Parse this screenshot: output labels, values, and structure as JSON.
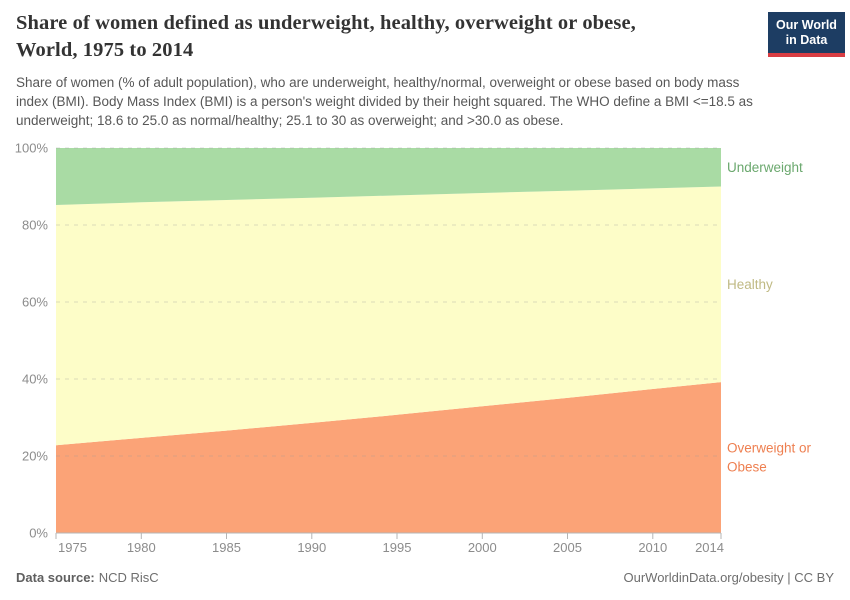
{
  "header": {
    "title_lines": [
      "Share of women defined as underweight, healthy, overweight or obese,",
      "World, 1975 to 2014"
    ],
    "subtitle": "Share of women (% of adult population), who are underweight, healthy/normal, overweight or obese based on body mass index (BMI). Body Mass Index (BMI) is a person's weight divided by their height squared. The WHO define a BMI <=18.5 as underweight; 18.6 to 25.0 as normal/healthy; 25.1 to 30 as overweight; and >30.0 as obese.",
    "logo": {
      "line1": "Our World",
      "line2": "in Data",
      "bg": "#1d3d63",
      "accent": "#d93d43"
    }
  },
  "chart_data": {
    "type": "area",
    "stacked": true,
    "title": "Share of women defined as underweight, healthy, overweight or obese, World, 1975 to 2014",
    "xlabel": "",
    "ylabel": "",
    "x": [
      1975,
      1980,
      1985,
      1990,
      1995,
      2000,
      2005,
      2010,
      2014
    ],
    "x_tick_labels": [
      "1975",
      "1980",
      "1985",
      "1990",
      "1995",
      "2000",
      "2005",
      "2010",
      "2014"
    ],
    "xlim": [
      1975,
      2014
    ],
    "ylim": [
      0,
      100
    ],
    "y_ticks": [
      0,
      20,
      40,
      60,
      80,
      100
    ],
    "y_tick_labels": [
      "0%",
      "20%",
      "40%",
      "60%",
      "80%",
      "100%"
    ],
    "grid": "dashed-horizontal",
    "legend_position": "inline-right-labels",
    "series": [
      {
        "name": "Overweight or Obese",
        "label_lines": [
          "Overweight or",
          "Obese"
        ],
        "color": "#fba377",
        "label_color": "#ee7f50",
        "values": [
          22.8,
          24.7,
          26.6,
          28.6,
          30.7,
          32.9,
          35.1,
          37.4,
          39.2
        ]
      },
      {
        "name": "Healthy",
        "label_lines": [
          "Healthy"
        ],
        "color": "#fdfdc8",
        "label_color": "#c0ba84",
        "values": [
          62.4,
          61.2,
          59.9,
          58.5,
          57.0,
          55.4,
          53.8,
          52.1,
          50.8
        ]
      },
      {
        "name": "Underweight",
        "label_lines": [
          "Underweight"
        ],
        "color": "#a9dba4",
        "label_color": "#6ba86e",
        "values": [
          14.8,
          14.1,
          13.5,
          12.9,
          12.3,
          11.7,
          11.1,
          10.5,
          10.0
        ]
      }
    ],
    "axis_color": "#b5b5b5",
    "tick_label_color": "#8c8c8c",
    "grid_color": "#999999"
  },
  "footer": {
    "source_label": "Data source:",
    "source_value": "NCD RisC",
    "credit": "OurWorldinData.org/obesity | CC BY"
  }
}
